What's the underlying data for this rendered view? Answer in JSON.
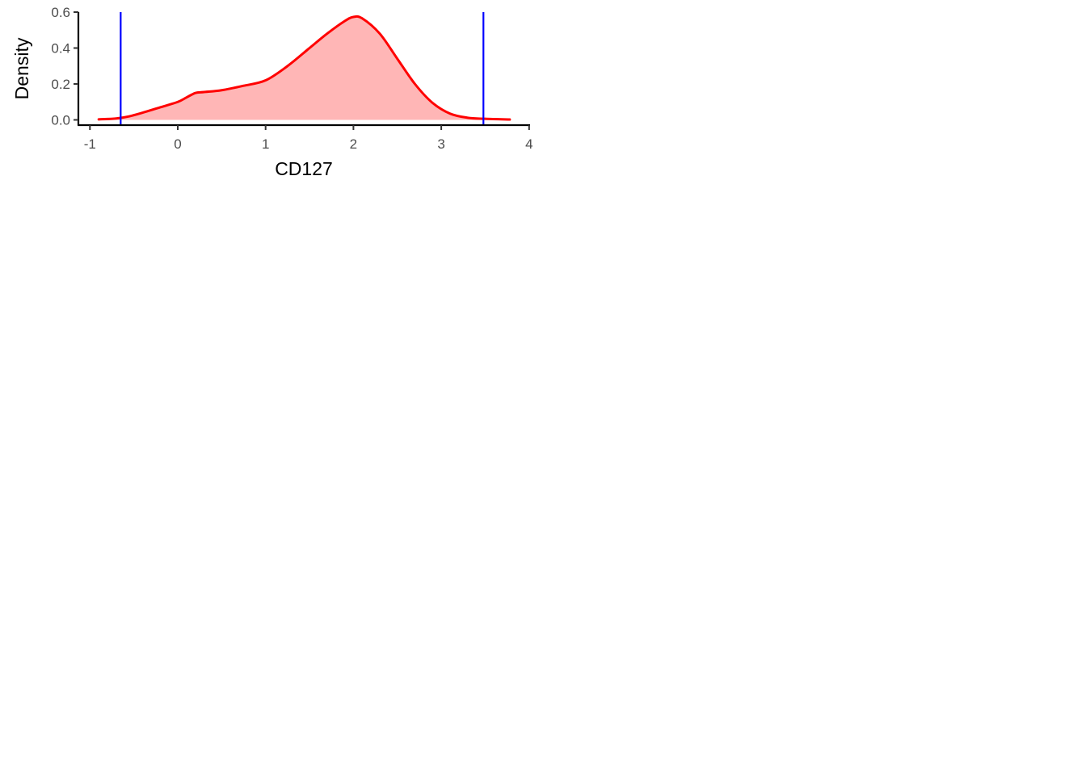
{
  "chart_data": {
    "type": "area",
    "title": "",
    "xlabel": "CD127",
    "ylabel": "Density",
    "xlim": [
      -1.1,
      4.0
    ],
    "ylim": [
      0.0,
      0.6
    ],
    "x_ticks": [
      -1,
      0,
      1,
      2,
      3,
      4
    ],
    "x_tick_labels": [
      "-1",
      "0",
      "1",
      "2",
      "3",
      "4"
    ],
    "y_ticks": [
      0.0,
      0.2,
      0.4,
      0.6
    ],
    "y_tick_labels": [
      "0.0",
      "0.2",
      "0.4",
      "0.6"
    ],
    "grid": false,
    "legend": "none",
    "series": [
      {
        "x": [
          -0.9,
          -0.7,
          -0.55,
          -0.4,
          -0.2,
          0.0,
          0.1,
          0.2,
          0.3,
          0.5,
          0.75,
          1.0,
          1.25,
          1.5,
          1.7,
          1.9,
          2.0,
          2.1,
          2.3,
          2.5,
          2.7,
          2.9,
          3.1,
          3.3,
          3.5,
          3.78
        ],
        "y": [
          0.003,
          0.008,
          0.02,
          0.04,
          0.07,
          0.1,
          0.125,
          0.15,
          0.155,
          0.165,
          0.19,
          0.22,
          0.3,
          0.4,
          0.48,
          0.55,
          0.573,
          0.565,
          0.48,
          0.34,
          0.2,
          0.095,
          0.035,
          0.012,
          0.006,
          0.002
        ],
        "line_color": "#ff0000",
        "fill_color": "#ffb6b6"
      }
    ],
    "vlines": [
      {
        "x": -0.65,
        "color": "#0000ff"
      },
      {
        "x": 3.48,
        "color": "#0000ff"
      }
    ]
  }
}
